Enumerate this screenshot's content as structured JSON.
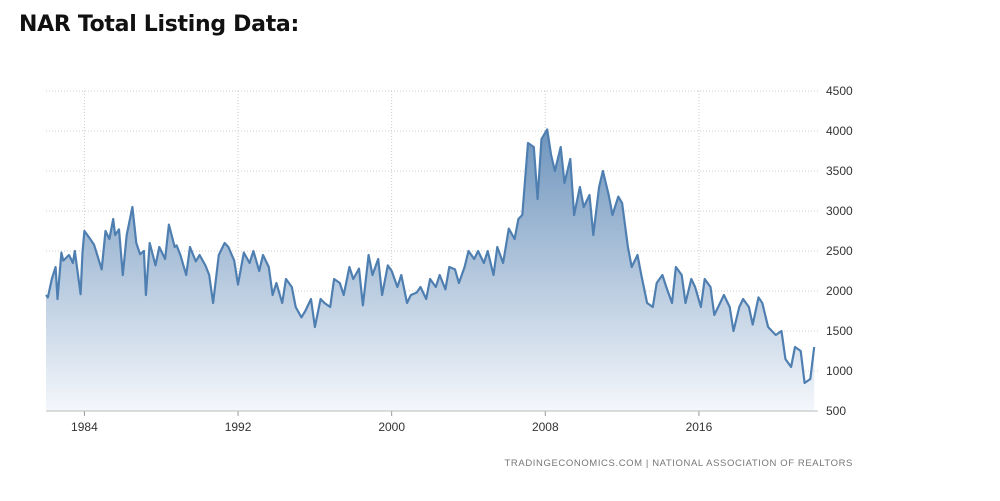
{
  "page": {
    "title": "NAR Total Listing Data:"
  },
  "source_text": "TRADINGECONOMICS.COM  |  NATIONAL ASSOCIATION OF REALTORS",
  "colors": {
    "line": "#4f7fb1",
    "fill_top": "#6f95bd",
    "fill_bottom": "#f4f7fb",
    "grid": "#cccccc"
  },
  "chart_data": {
    "type": "area",
    "title": "",
    "xlabel": "",
    "ylabel": "",
    "xlim": [
      1982.0,
      2022.2
    ],
    "ylim": [
      500,
      4500
    ],
    "x_ticks": [
      1984,
      1992,
      2000,
      2008,
      2016
    ],
    "x_tick_labels": [
      "1984",
      "1992",
      "2000",
      "2008",
      "2016"
    ],
    "y_ticks": [
      500,
      1000,
      1500,
      2000,
      2500,
      3000,
      3500,
      4000,
      4500
    ],
    "y_tick_labels": [
      "500",
      "1000",
      "1500",
      "2000",
      "2500",
      "3000",
      "3500",
      "4000",
      "4500"
    ],
    "grid": true,
    "y_axis_side": "right",
    "series": [
      {
        "name": "",
        "x": [
          1982.0,
          1982.1,
          1982.3,
          1982.5,
          1982.6,
          1982.8,
          1982.9,
          1983.2,
          1983.4,
          1983.5,
          1983.8,
          1983.9,
          1984.0,
          1984.3,
          1984.5,
          1984.9,
          1985.1,
          1985.3,
          1985.5,
          1985.6,
          1985.8,
          1986.0,
          1986.2,
          1986.5,
          1986.7,
          1986.9,
          1987.1,
          1987.2,
          1987.4,
          1987.7,
          1987.9,
          1988.2,
          1988.4,
          1988.7,
          1988.8,
          1989.0,
          1989.3,
          1989.5,
          1989.8,
          1990.0,
          1990.3,
          1990.5,
          1990.7,
          1991.0,
          1991.3,
          1991.5,
          1991.8,
          1992.0,
          1992.3,
          1992.6,
          1992.8,
          1993.1,
          1993.3,
          1993.6,
          1993.8,
          1994.0,
          1994.3,
          1994.5,
          1994.8,
          1995.0,
          1995.3,
          1995.5,
          1995.8,
          1996.0,
          1996.3,
          1996.5,
          1996.8,
          1997.0,
          1997.3,
          1997.5,
          1997.8,
          1998.0,
          1998.3,
          1998.5,
          1998.8,
          1999.0,
          1999.3,
          1999.5,
          1999.8,
          2000.0,
          2000.3,
          2000.5,
          2000.8,
          2001.0,
          2001.3,
          2001.5,
          2001.8,
          2002.0,
          2002.3,
          2002.5,
          2002.8,
          2003.0,
          2003.3,
          2003.5,
          2003.8,
          2004.0,
          2004.3,
          2004.5,
          2004.8,
          2005.0,
          2005.3,
          2005.5,
          2005.8,
          2006.1,
          2006.4,
          2006.6,
          2006.8,
          2007.1,
          2007.4,
          2007.6,
          2007.8,
          2008.1,
          2008.3,
          2008.5,
          2008.8,
          2009.0,
          2009.3,
          2009.5,
          2009.8,
          2010.0,
          2010.3,
          2010.5,
          2010.8,
          2011.0,
          2011.3,
          2011.5,
          2011.8,
          2012.0,
          2012.3,
          2012.5,
          2012.8,
          2013.0,
          2013.3,
          2013.6,
          2013.8,
          2014.1,
          2014.3,
          2014.6,
          2014.8,
          2015.1,
          2015.3,
          2015.6,
          2015.8,
          2016.1,
          2016.3,
          2016.6,
          2016.8,
          2017.1,
          2017.3,
          2017.6,
          2017.8,
          2018.1,
          2018.3,
          2018.6,
          2018.8,
          2019.1,
          2019.3,
          2019.6,
          2019.8,
          2020.0,
          2020.3,
          2020.5,
          2020.8,
          2021.0,
          2021.3,
          2021.5,
          2021.8,
          2022.0
        ],
        "values": [
          1950,
          1920,
          2150,
          2300,
          1900,
          2480,
          2380,
          2450,
          2350,
          2500,
          1960,
          2480,
          2750,
          2650,
          2580,
          2270,
          2750,
          2650,
          2900,
          2700,
          2770,
          2200,
          2700,
          3050,
          2600,
          2460,
          2500,
          1950,
          2600,
          2320,
          2550,
          2400,
          2830,
          2550,
          2570,
          2450,
          2200,
          2550,
          2370,
          2450,
          2320,
          2200,
          1850,
          2450,
          2600,
          2550,
          2380,
          2080,
          2480,
          2350,
          2500,
          2250,
          2450,
          2300,
          1950,
          2100,
          1850,
          2150,
          2050,
          1800,
          1670,
          1750,
          1900,
          1550,
          1900,
          1850,
          1800,
          2150,
          2100,
          1950,
          2300,
          2150,
          2280,
          1820,
          2450,
          2200,
          2400,
          1950,
          2320,
          2250,
          2050,
          2200,
          1850,
          1950,
          1980,
          2050,
          1900,
          2150,
          2050,
          2200,
          2020,
          2300,
          2270,
          2100,
          2300,
          2500,
          2400,
          2500,
          2350,
          2500,
          2200,
          2550,
          2350,
          2780,
          2650,
          2900,
          2950,
          3850,
          3800,
          3150,
          3900,
          4020,
          3700,
          3500,
          3800,
          3350,
          3650,
          2950,
          3300,
          3050,
          3200,
          2700,
          3300,
          3500,
          3200,
          2950,
          3180,
          3100,
          2550,
          2300,
          2450,
          2200,
          1850,
          1800,
          2100,
          2200,
          2050,
          1850,
          2300,
          2200,
          1850,
          2150,
          2050,
          1800,
          2150,
          2050,
          1700,
          1850,
          1950,
          1800,
          1500,
          1800,
          1900,
          1800,
          1580,
          1920,
          1850,
          1550,
          1500,
          1450,
          1500,
          1150,
          1050,
          1300,
          1250,
          850,
          900,
          1300
        ]
      }
    ]
  }
}
